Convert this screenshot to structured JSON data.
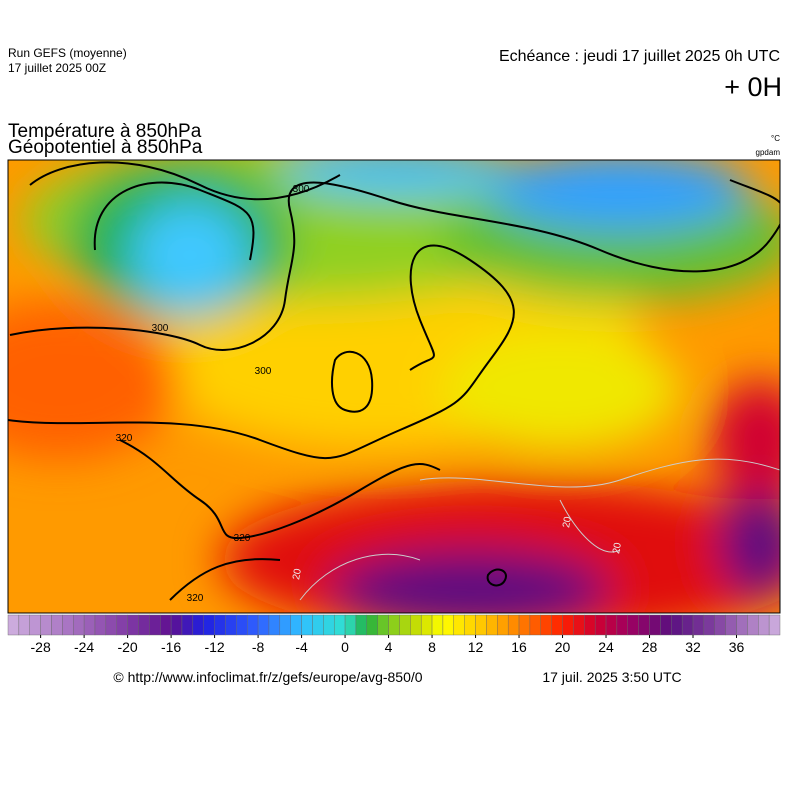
{
  "header": {
    "run": "Run GEFS (moyenne)",
    "run_date": "17 juillet 2025 00Z",
    "valid": "Echéance : jeudi 17 juillet 2025 0h UTC",
    "lead": "+ 0H",
    "title1": "Température à 850hPa",
    "title2": "Géopotentiel à 850hPa",
    "unit1": "°C",
    "unit2": "gpdam"
  },
  "map": {
    "contour_labels": [
      "300",
      "300",
      "300",
      "320",
      "320",
      "320",
      "20",
      "20",
      "20"
    ]
  },
  "colorbar": {
    "range": [
      -31,
      40
    ],
    "ticks": [
      -28,
      -24,
      -20,
      -16,
      -12,
      -8,
      -4,
      0,
      4,
      8,
      12,
      16,
      20,
      24,
      28,
      32,
      36
    ],
    "stops": [
      [
        -31,
        "#d0b0e0"
      ],
      [
        -22,
        "#9050b0"
      ],
      [
        -16,
        "#601090"
      ],
      [
        -13,
        "#2020e0"
      ],
      [
        -8,
        "#3060ff"
      ],
      [
        -4,
        "#30c0ff"
      ],
      [
        0,
        "#30e0d0"
      ],
      [
        2,
        "#20b040"
      ],
      [
        4,
        "#80cc20"
      ],
      [
        7,
        "#d0e000"
      ],
      [
        9,
        "#ffff00"
      ],
      [
        13,
        "#ffc000"
      ],
      [
        16,
        "#ff8000"
      ],
      [
        20,
        "#ff2000"
      ],
      [
        23,
        "#d00030"
      ],
      [
        26,
        "#a00060"
      ],
      [
        30,
        "#5a1080"
      ],
      [
        34,
        "#8040a0"
      ],
      [
        40,
        "#d0b0e0"
      ]
    ]
  },
  "footer": {
    "source": "© http://www.infoclimat.fr/z/gefs/europe/avg-850/0",
    "stamp": "17 juil. 2025  3:50 UTC"
  }
}
